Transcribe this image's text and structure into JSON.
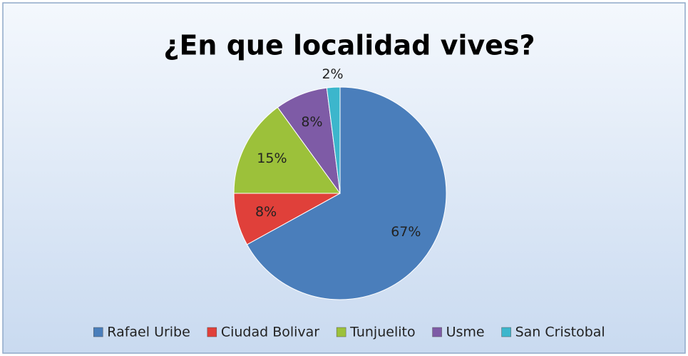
{
  "chart_data": {
    "type": "pie",
    "title": "¿En que localidad vives?",
    "categories": [
      "Rafael Uribe",
      "Ciudad Bolivar",
      "Tunjuelito",
      "Usme",
      "San Cristobal"
    ],
    "values": [
      67,
      8,
      15,
      8,
      2
    ],
    "value_labels": [
      "67%",
      "8%",
      "15%",
      "8%",
      "2%"
    ],
    "colors": [
      "#4a7ebb",
      "#e0403a",
      "#9cc13a",
      "#7e5ba6",
      "#3cb6cc"
    ],
    "legend": "bottom"
  }
}
